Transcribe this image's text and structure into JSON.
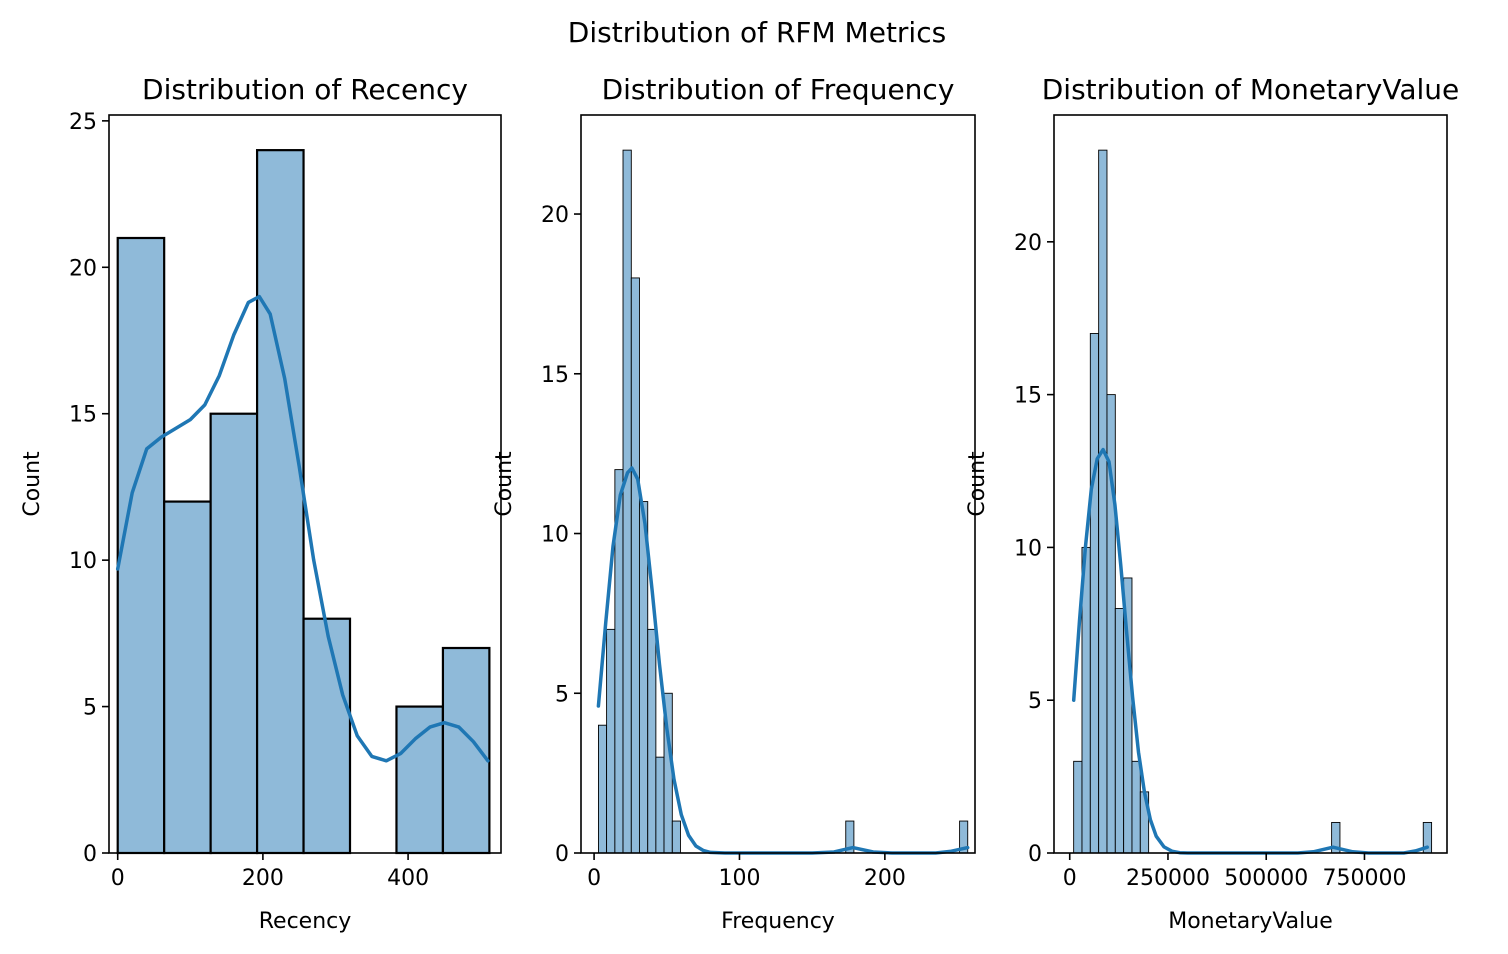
{
  "suptitle": "Distribution of RFM Metrics",
  "chart_data": [
    {
      "type": "histogram",
      "title": "Distribution of Recency",
      "xlabel": "Recency",
      "ylabel": "Count",
      "xlim": [
        -12,
        528
      ],
      "ylim": [
        0,
        25.2
      ],
      "xticks": [
        0,
        200,
        400
      ],
      "xtick_labels": [
        "0",
        "200",
        "400"
      ],
      "yticks": [
        0,
        5,
        10,
        15,
        20,
        25
      ],
      "ytick_labels": [
        "0",
        "5",
        "10",
        "15",
        "20",
        "25"
      ],
      "bins": [
        [
          0,
          64,
          21
        ],
        [
          64,
          128,
          12
        ],
        [
          128,
          192,
          15
        ],
        [
          192,
          256,
          24
        ],
        [
          256,
          320,
          8
        ],
        [
          384,
          448,
          5
        ],
        [
          448,
          512,
          7
        ]
      ],
      "kde": [
        [
          0,
          9.7
        ],
        [
          20,
          12.3
        ],
        [
          40,
          13.8
        ],
        [
          60,
          14.2
        ],
        [
          80,
          14.5
        ],
        [
          100,
          14.8
        ],
        [
          120,
          15.3
        ],
        [
          140,
          16.3
        ],
        [
          160,
          17.7
        ],
        [
          180,
          18.8
        ],
        [
          195,
          19.0
        ],
        [
          210,
          18.4
        ],
        [
          230,
          16.2
        ],
        [
          250,
          13.2
        ],
        [
          270,
          10.0
        ],
        [
          290,
          7.4
        ],
        [
          310,
          5.4
        ],
        [
          330,
          4.0
        ],
        [
          350,
          3.3
        ],
        [
          370,
          3.15
        ],
        [
          390,
          3.4
        ],
        [
          410,
          3.9
        ],
        [
          430,
          4.3
        ],
        [
          450,
          4.45
        ],
        [
          470,
          4.3
        ],
        [
          490,
          3.8
        ],
        [
          510,
          3.15
        ]
      ]
    },
    {
      "type": "histogram",
      "title": "Distribution of Frequency",
      "xlabel": "Frequency",
      "ylabel": "Count",
      "xlim": [
        -9,
        262
      ],
      "ylim": [
        0,
        23.1
      ],
      "xticks": [
        0,
        100,
        200
      ],
      "xtick_labels": [
        "0",
        "100",
        "200"
      ],
      "yticks": [
        0,
        5,
        10,
        15,
        20
      ],
      "ytick_labels": [
        "0",
        "5",
        "10",
        "15",
        "20"
      ],
      "bins": [
        [
          3,
          8.6,
          4
        ],
        [
          8.6,
          14.3,
          7
        ],
        [
          14.3,
          19.9,
          12
        ],
        [
          19.9,
          25.6,
          22
        ],
        [
          25.6,
          31.2,
          18
        ],
        [
          31.2,
          36.9,
          11
        ],
        [
          36.9,
          42.5,
          7
        ],
        [
          42.5,
          48.1,
          3
        ],
        [
          48.1,
          53.8,
          5
        ],
        [
          53.8,
          59.4,
          1
        ],
        [
          173.1,
          178.7,
          1
        ],
        [
          251.4,
          257,
          1
        ]
      ],
      "kde": [
        [
          3,
          4.6
        ],
        [
          8,
          7.2
        ],
        [
          13,
          9.6
        ],
        [
          18,
          11.2
        ],
        [
          23,
          11.9
        ],
        [
          26,
          12.05
        ],
        [
          30,
          11.7
        ],
        [
          35,
          10.3
        ],
        [
          40,
          8.2
        ],
        [
          45,
          5.9
        ],
        [
          50,
          3.9
        ],
        [
          55,
          2.3
        ],
        [
          60,
          1.2
        ],
        [
          65,
          0.55
        ],
        [
          70,
          0.22
        ],
        [
          75,
          0.08
        ],
        [
          80,
          0.02
        ],
        [
          90,
          0
        ],
        [
          150,
          0
        ],
        [
          165,
          0.03
        ],
        [
          178,
          0.17
        ],
        [
          192,
          0.03
        ],
        [
          205,
          0
        ],
        [
          235,
          0
        ],
        [
          245,
          0.05
        ],
        [
          257,
          0.17
        ]
      ]
    },
    {
      "type": "histogram",
      "title": "Distribution of MonetaryValue",
      "xlabel": "MonetaryValue",
      "ylabel": "Count",
      "xlim": [
        -40000,
        960000
      ],
      "ylim": [
        0,
        24.15
      ],
      "xticks": [
        0,
        250000,
        500000,
        750000
      ],
      "xtick_labels": [
        "0",
        "250000",
        "500000",
        "750000"
      ],
      "yticks": [
        0,
        5,
        10,
        15,
        20
      ],
      "ytick_labels": [
        "0",
        "5",
        "10",
        "15",
        "20"
      ],
      "bins": [
        [
          10000,
          31200,
          3
        ],
        [
          31200,
          52400,
          10
        ],
        [
          52400,
          73600,
          17
        ],
        [
          73600,
          94800,
          23
        ],
        [
          94800,
          116000,
          15
        ],
        [
          116000,
          137200,
          8
        ],
        [
          137200,
          158400,
          9
        ],
        [
          158400,
          179600,
          3
        ],
        [
          179600,
          200800,
          2
        ],
        [
          666400,
          687600,
          1
        ],
        [
          899600,
          920800,
          1
        ]
      ],
      "kde": [
        [
          10000,
          5.0
        ],
        [
          25000,
          7.6
        ],
        [
          40000,
          10.0
        ],
        [
          55000,
          11.9
        ],
        [
          70000,
          12.9
        ],
        [
          85000,
          13.2
        ],
        [
          100000,
          12.8
        ],
        [
          115000,
          11.4
        ],
        [
          130000,
          9.4
        ],
        [
          145000,
          7.2
        ],
        [
          160000,
          5.1
        ],
        [
          175000,
          3.3
        ],
        [
          190000,
          2.0
        ],
        [
          205000,
          1.1
        ],
        [
          220000,
          0.55
        ],
        [
          240000,
          0.2
        ],
        [
          260000,
          0.06
        ],
        [
          280000,
          0.01
        ],
        [
          300000,
          0
        ],
        [
          580000,
          0
        ],
        [
          620000,
          0.04
        ],
        [
          670000,
          0.19
        ],
        [
          720000,
          0.04
        ],
        [
          760000,
          0
        ],
        [
          850000,
          0
        ],
        [
          880000,
          0.07
        ],
        [
          910000,
          0.19
        ]
      ]
    }
  ]
}
